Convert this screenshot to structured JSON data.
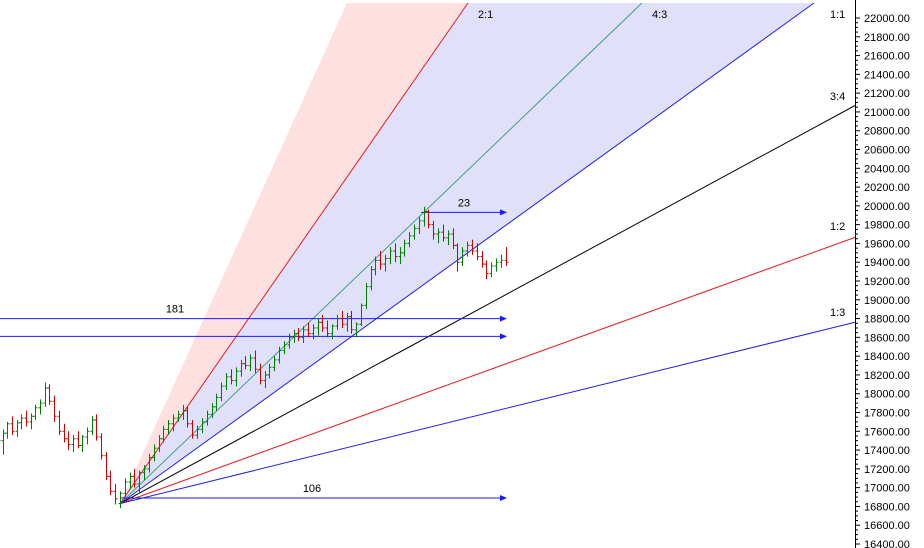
{
  "chart_data": {
    "type": "ohlc",
    "title": "",
    "xlabel": "",
    "ylabel": "",
    "ylim": [
      16300,
      22100
    ],
    "y_ticks": [
      22000,
      21800,
      21600,
      21400,
      21200,
      21000,
      20800,
      20600,
      20400,
      20200,
      20000,
      19800,
      19600,
      19400,
      19200,
      19000,
      18800,
      18600,
      18400,
      18200,
      18000,
      17800,
      17600,
      17400,
      17200,
      17000,
      16800,
      16600,
      16400
    ],
    "y_tick_labels": [
      "22000.00",
      "21800.00",
      "21600.00",
      "21400.00",
      "21200.00",
      "21000.00",
      "20800.00",
      "20600.00",
      "20400.00",
      "20200.00",
      "20000.00",
      "19800.00",
      "19600.00",
      "19400.00",
      "19200.00",
      "19000.00",
      "18800.00",
      "18600.00",
      "18400.00",
      "18200.00",
      "18000.00",
      "17800.00",
      "17600.00",
      "17400.00",
      "17200.00",
      "17000.00",
      "16800.00",
      "16600.00",
      "16400.00"
    ],
    "gann_fan": {
      "origin_bar": 0,
      "origin_price": 16830,
      "lines": [
        {
          "label": "2:1",
          "color": "#e02020"
        },
        {
          "label": "4:3",
          "color": "#40a080"
        },
        {
          "label": "1:1",
          "color": "#2020e0"
        },
        {
          "label": "3:4",
          "color": "#000000"
        },
        {
          "label": "1:2",
          "color": "#e02020"
        },
        {
          "label": "1:3",
          "color": "#2020e0"
        }
      ]
    },
    "measurements": [
      {
        "label": "181",
        "price": 18800
      },
      {
        "label": "23",
        "price": 19930
      },
      {
        "label": "106",
        "price": 16890
      }
    ],
    "support_line": {
      "price": 18610
    },
    "series": [
      {
        "values": [
          [
            17720,
            17780,
            17400,
            17500
          ],
          [
            17500,
            17620,
            17350,
            17580
          ],
          [
            17580,
            17700,
            17520,
            17680
          ],
          [
            17680,
            17760,
            17560,
            17600
          ],
          [
            17600,
            17720,
            17540,
            17690
          ],
          [
            17690,
            17780,
            17620,
            17740
          ],
          [
            17740,
            17820,
            17650,
            17700
          ],
          [
            17700,
            17790,
            17620,
            17760
          ],
          [
            17760,
            17880,
            17720,
            17850
          ],
          [
            17850,
            17940,
            17780,
            17900
          ],
          [
            17900,
            18120,
            17860,
            18060
          ],
          [
            18060,
            18100,
            17880,
            17920
          ],
          [
            17920,
            17980,
            17700,
            17760
          ],
          [
            17760,
            17820,
            17560,
            17600
          ],
          [
            17600,
            17680,
            17480,
            17520
          ],
          [
            17520,
            17600,
            17400,
            17460
          ],
          [
            17460,
            17560,
            17380,
            17520
          ],
          [
            17520,
            17600,
            17420,
            17450
          ],
          [
            17450,
            17560,
            17380,
            17540
          ],
          [
            17540,
            17640,
            17460,
            17600
          ],
          [
            17600,
            17760,
            17560,
            17720
          ],
          [
            17720,
            17780,
            17500,
            17540
          ],
          [
            17540,
            17580,
            17300,
            17340
          ],
          [
            17340,
            17380,
            17080,
            17120
          ],
          [
            17120,
            17180,
            16920,
            16960
          ],
          [
            16960,
            17040,
            16820,
            16880
          ]
        ]
      },
      {
        "values": [
          [
            16830,
            16960,
            16780,
            16940
          ],
          [
            16940,
            17100,
            16900,
            17060
          ],
          [
            17060,
            17160,
            16980,
            17120
          ],
          [
            17120,
            17200,
            17000,
            17040
          ],
          [
            17040,
            17180,
            16940,
            17160
          ],
          [
            17160,
            17240,
            17080,
            17200
          ],
          [
            17200,
            17360,
            17160,
            17320
          ],
          [
            17320,
            17460,
            17280,
            17420
          ],
          [
            17420,
            17560,
            17380,
            17520
          ],
          [
            17520,
            17660,
            17480,
            17620
          ],
          [
            17620,
            17720,
            17560,
            17680
          ],
          [
            17680,
            17780,
            17600,
            17740
          ],
          [
            17740,
            17820,
            17700,
            17780
          ],
          [
            17780,
            17880,
            17720,
            17820
          ],
          [
            17820,
            17860,
            17640,
            17680
          ],
          [
            17680,
            17720,
            17520,
            17560
          ],
          [
            17560,
            17660,
            17520,
            17620
          ],
          [
            17620,
            17740,
            17580,
            17700
          ],
          [
            17700,
            17820,
            17660,
            17780
          ],
          [
            17780,
            17900,
            17740,
            17860
          ],
          [
            17860,
            18000,
            17820,
            17960
          ],
          [
            17960,
            18120,
            17920,
            18080
          ],
          [
            18080,
            18220,
            18040,
            18180
          ],
          [
            18180,
            18260,
            18100,
            18140
          ],
          [
            18140,
            18280,
            18080,
            18240
          ],
          [
            18240,
            18360,
            18180,
            18320
          ],
          [
            18320,
            18400,
            18260,
            18300
          ],
          [
            18300,
            18420,
            18240,
            18380
          ],
          [
            18380,
            18460,
            18220,
            18260
          ],
          [
            18260,
            18320,
            18100,
            18140
          ],
          [
            18140,
            18240,
            18060,
            18200
          ],
          [
            18200,
            18320,
            18160,
            18280
          ],
          [
            18280,
            18400,
            18240,
            18360
          ],
          [
            18360,
            18500,
            18320,
            18460
          ],
          [
            18460,
            18560,
            18420,
            18520
          ],
          [
            18520,
            18640,
            18480,
            18600
          ],
          [
            18600,
            18680,
            18540,
            18640
          ],
          [
            18640,
            18700,
            18560,
            18600
          ],
          [
            18600,
            18720,
            18540,
            18680
          ],
          [
            18680,
            18760,
            18600,
            18640
          ],
          [
            18640,
            18740,
            18580,
            18700
          ],
          [
            18700,
            18800,
            18620,
            18760
          ],
          [
            18760,
            18840,
            18660,
            18700
          ],
          [
            18700,
            18780,
            18600,
            18640
          ],
          [
            18640,
            18740,
            18580,
            18720
          ],
          [
            18720,
            18840,
            18680,
            18800
          ],
          [
            18800,
            18880,
            18700,
            18740
          ],
          [
            18740,
            18860,
            18660,
            18820
          ],
          [
            18820,
            18880,
            18640,
            18680
          ],
          [
            18680,
            18760,
            18600,
            18740
          ],
          [
            18740,
            18960,
            18720,
            18940
          ],
          [
            18940,
            19180,
            18900,
            19140
          ],
          [
            19140,
            19360,
            19100,
            19320
          ],
          [
            19320,
            19460,
            19260,
            19420
          ],
          [
            19420,
            19520,
            19320,
            19380
          ],
          [
            19380,
            19480,
            19300,
            19440
          ],
          [
            19440,
            19560,
            19380,
            19520
          ],
          [
            19520,
            19600,
            19400,
            19460
          ],
          [
            19460,
            19560,
            19380,
            19500
          ],
          [
            19500,
            19640,
            19460,
            19600
          ],
          [
            19600,
            19720,
            19560,
            19680
          ],
          [
            19680,
            19800,
            19640,
            19760
          ],
          [
            19760,
            19880,
            19700,
            19840
          ],
          [
            19840,
            19990,
            19780,
            19940
          ],
          [
            19940,
            19960,
            19760,
            19800
          ],
          [
            19800,
            19840,
            19640,
            19700
          ],
          [
            19700,
            19760,
            19600,
            19720
          ],
          [
            19720,
            19800,
            19620,
            19660
          ],
          [
            19660,
            19740,
            19580,
            19700
          ],
          [
            19700,
            19760,
            19540,
            19580
          ],
          [
            19580,
            19600,
            19300,
            19400
          ],
          [
            19400,
            19560,
            19360,
            19520
          ],
          [
            19520,
            19620,
            19460,
            19580
          ],
          [
            19580,
            19640,
            19480,
            19520
          ],
          [
            19520,
            19600,
            19420,
            19460
          ],
          [
            19460,
            19520,
            19340,
            19380
          ],
          [
            19380,
            19420,
            19220,
            19280
          ],
          [
            19280,
            19400,
            19240,
            19360
          ],
          [
            19360,
            19440,
            19300,
            19400
          ],
          [
            19400,
            19480,
            19340,
            19420
          ],
          [
            19420,
            19560,
            19360,
            19400
          ]
        ]
      }
    ]
  }
}
